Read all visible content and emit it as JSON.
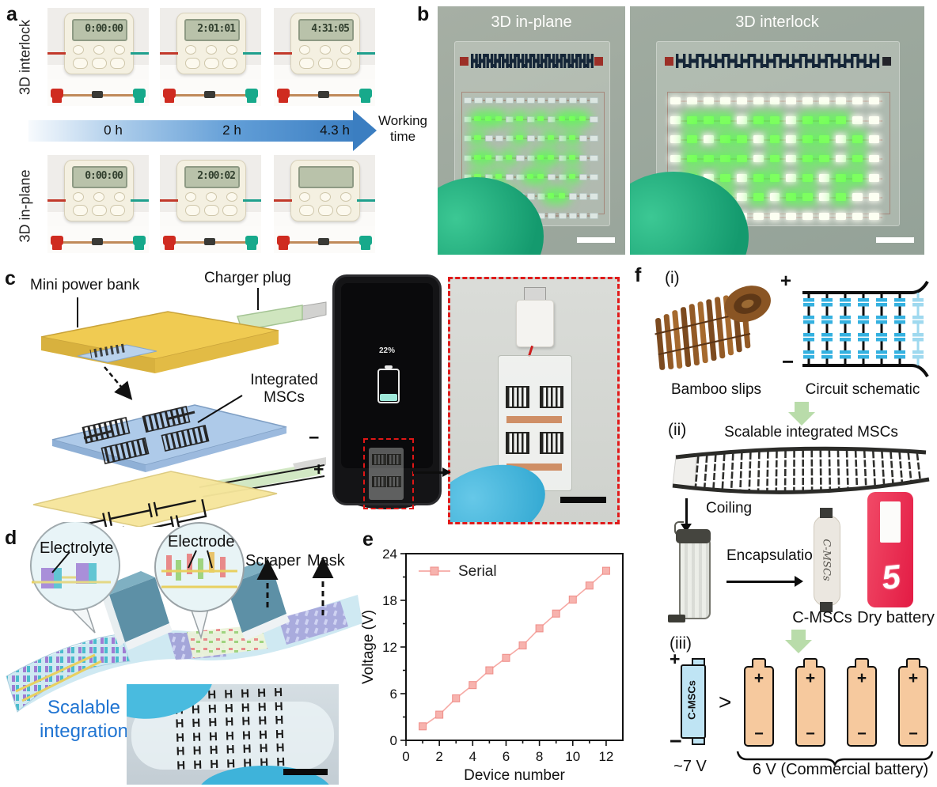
{
  "panels": {
    "a": {
      "label": "a",
      "rows": [
        {
          "side_label": "3D interlock",
          "times": [
            "0:00:00",
            "2:01:01",
            "4:31:05"
          ]
        },
        {
          "side_label": "3D in-plane",
          "times": [
            "0:00:00",
            "2:00:02",
            ""
          ]
        }
      ],
      "timeline": {
        "ticks": [
          "0 h",
          "2 h",
          "4.3 h"
        ],
        "axis_label": "Working time"
      }
    },
    "b": {
      "label": "b",
      "boards": [
        {
          "title": "3D in-plane",
          "off_style": "off-dim",
          "rows": [
            ".............",
            ".ggg.g.g.ggg.",
            ".g...g..g.g..",
            ".gg.g..gg.g..",
            ".g.g..gg..g..",
            ".gg.g...gg...",
            "............."
          ]
        },
        {
          "title": "3D interlock",
          "off_style": "off-bright",
          "rows": [
            ".............",
            ".ggg.gg.ggg..",
            ".g.gg.g.gg.g.",
            ".gggg.g.gg.g.",
            ".g.g.gg.g.gg.",
            ".ggg.g.gg.g..",
            "............."
          ]
        }
      ]
    },
    "c": {
      "label": "c",
      "annotations": {
        "power_bank": "Mini power bank",
        "charger": "Charger plug",
        "mscs": "Integrated MSCs",
        "minus": "−",
        "plus": "+"
      },
      "phone": {
        "percent": "22%"
      }
    },
    "d": {
      "label": "d",
      "callouts": {
        "electrolyte": "Electrolyte",
        "electrode": "Electrode",
        "scraper": "Scraper",
        "mask": "Mask"
      },
      "caption": "Scalable integration"
    },
    "e": {
      "label": "e"
    },
    "f": {
      "label": "f",
      "i": {
        "tag": "(i)",
        "bamboo": "Bamboo slips",
        "circuit": "Circuit schematic",
        "plus": "+",
        "minus": "−"
      },
      "ii": {
        "tag": "(ii)",
        "title": "Scalable integrated MSCs",
        "coiling": "Coiling",
        "encapsulation": "Encapsulation",
        "cmsc_label": "C-MSCs",
        "cmsc_body_text": "C-MSCs",
        "battery_label": "Dry battery",
        "battery_digit": "5"
      },
      "iii": {
        "tag": "(iii)",
        "cmsc_text": "C-MSCs",
        "plus": "+",
        "minus": "−",
        "gt": ">",
        "bat_plus": "+",
        "bat_minus": "−",
        "cmsc_voltage": "~7 V",
        "battery_voltage": "6 V (Commercial battery)"
      }
    }
  },
  "chart_data": {
    "type": "line",
    "title": "",
    "xlabel": "Device number",
    "ylabel": "Voltage (V)",
    "xlim": [
      0,
      13
    ],
    "ylim": [
      0,
      24
    ],
    "xticks": [
      0,
      2,
      4,
      6,
      8,
      10,
      12
    ],
    "yticks": [
      0,
      6,
      12,
      18,
      24
    ],
    "grid": false,
    "legend_position": "top-left",
    "series": [
      {
        "name": "Serial",
        "color": "#f6a9a4",
        "marker": "square",
        "x": [
          1,
          2,
          3,
          4,
          5,
          6,
          7,
          8,
          9,
          10,
          11,
          12
        ],
        "y": [
          1.8,
          3.3,
          5.4,
          7.1,
          9.0,
          10.6,
          12.2,
          14.4,
          16.3,
          18.1,
          19.9,
          21.8
        ]
      }
    ]
  }
}
